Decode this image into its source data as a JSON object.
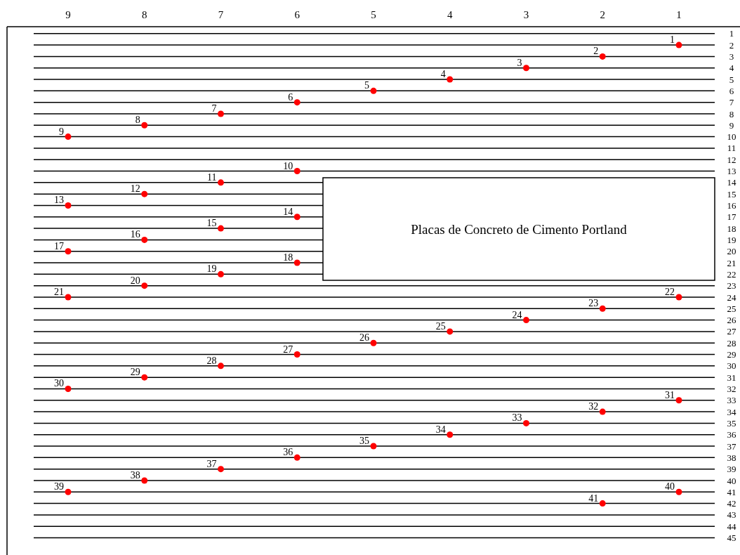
{
  "chart_data": {
    "type": "scatter",
    "x": [
      1,
      2,
      3,
      4,
      5,
      6,
      7,
      8,
      9,
      6,
      7,
      8,
      9,
      6,
      7,
      8,
      9,
      6,
      7,
      8,
      9,
      1,
      2,
      3,
      4,
      5,
      6,
      7,
      8,
      9,
      1,
      2,
      3,
      4,
      5,
      6,
      7,
      8,
      9,
      1,
      2
    ],
    "series": [
      {
        "color": "#ff0000",
        "values": [
          2,
          3,
          4,
          5,
          6,
          7,
          8,
          9,
          10,
          13,
          14,
          15,
          16,
          17,
          18,
          19,
          20,
          21,
          22,
          23,
          24,
          24,
          25,
          26,
          27,
          28,
          29,
          30,
          31,
          32,
          33,
          34,
          35,
          36,
          37,
          38,
          39,
          40,
          41,
          41,
          42
        ]
      }
    ],
    "xlim": [
      9.8,
      0.2
    ],
    "xticks": [
      9,
      8,
      7,
      6,
      5,
      4,
      3,
      2,
      1
    ],
    "ylim": [
      46.5,
      0.4
    ],
    "yticks": [
      1,
      2,
      3,
      4,
      5,
      6,
      7,
      8,
      9,
      10,
      11,
      12,
      13,
      14,
      15,
      16,
      17,
      18,
      19,
      20,
      21,
      22,
      23,
      24,
      25,
      26,
      27,
      28,
      29,
      30,
      31,
      32,
      33,
      34,
      35,
      36,
      37,
      38,
      39,
      40,
      41,
      42,
      43,
      44,
      45
    ],
    "grid": "y",
    "marker": "circle",
    "annotations": [
      "Placas de Concreto de Cimento Portland",
      {
        "text": "1",
        "x": 1,
        "y": 2
      },
      {
        "text": "2",
        "x": 2,
        "y": 3
      },
      {
        "text": "3",
        "x": 3,
        "y": 4
      },
      {
        "text": "4",
        "x": 4,
        "y": 5
      },
      {
        "text": "5",
        "x": 5,
        "y": 6
      },
      {
        "text": "6",
        "x": 6,
        "y": 7
      },
      {
        "text": "7",
        "x": 7,
        "y": 8
      },
      {
        "text": "8",
        "x": 8,
        "y": 9
      },
      {
        "text": "9",
        "x": 9,
        "y": 10
      },
      {
        "text": "10",
        "x": 6,
        "y": 13
      },
      {
        "text": "11",
        "x": 7,
        "y": 14
      },
      {
        "text": "12",
        "x": 8,
        "y": 15
      },
      {
        "text": "13",
        "x": 9,
        "y": 16
      },
      {
        "text": "14",
        "x": 6,
        "y": 17
      },
      {
        "text": "15",
        "x": 7,
        "y": 18
      },
      {
        "text": "16",
        "x": 8,
        "y": 19
      },
      {
        "text": "17",
        "x": 9,
        "y": 20
      },
      {
        "text": "18",
        "x": 6,
        "y": 21
      },
      {
        "text": "19",
        "x": 7,
        "y": 22
      },
      {
        "text": "20",
        "x": 8,
        "y": 23
      },
      {
        "text": "21",
        "x": 9,
        "y": 24
      },
      {
        "text": "22",
        "x": 1,
        "y": 24
      },
      {
        "text": "23",
        "x": 2,
        "y": 25
      },
      {
        "text": "24",
        "x": 3,
        "y": 26
      },
      {
        "text": "25",
        "x": 4,
        "y": 27
      },
      {
        "text": "26",
        "x": 5,
        "y": 28
      },
      {
        "text": "27",
        "x": 6,
        "y": 29
      },
      {
        "text": "28",
        "x": 7,
        "y": 30
      },
      {
        "text": "29",
        "x": 8,
        "y": 31
      },
      {
        "text": "30",
        "x": 9,
        "y": 32
      },
      {
        "text": "31",
        "x": 1,
        "y": 33
      },
      {
        "text": "32",
        "x": 2,
        "y": 34
      },
      {
        "text": "33",
        "x": 3,
        "y": 35
      },
      {
        "text": "34",
        "x": 4,
        "y": 36
      },
      {
        "text": "35",
        "x": 5,
        "y": 37
      },
      {
        "text": "36",
        "x": 6,
        "y": 38
      },
      {
        "text": "37",
        "x": 7,
        "y": 39
      },
      {
        "text": "38",
        "x": 8,
        "y": 40
      },
      {
        "text": "39",
        "x": 9,
        "y": 41
      },
      {
        "text": "40",
        "x": 1,
        "y": 41
      },
      {
        "text": "41",
        "x": 2,
        "y": 42
      }
    ]
  }
}
